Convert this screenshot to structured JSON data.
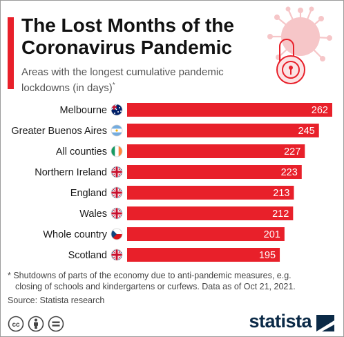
{
  "header": {
    "title": "The Lost Months of the Coronavirus Pandemic",
    "subtitle": "Areas with the longest cumulative pandemic lockdowns (in days)",
    "subtitle_mark": "*"
  },
  "chart_data": {
    "type": "bar",
    "orientation": "horizontal",
    "categories": [
      "Melbourne",
      "Greater Buenos Aires",
      "All counties",
      "Northern Ireland",
      "England",
      "Wales",
      "Whole country",
      "Scotland"
    ],
    "values": [
      262,
      245,
      227,
      223,
      213,
      212,
      201,
      195
    ],
    "flags": [
      "australia-flag",
      "argentina-flag",
      "ireland-flag",
      "uk-flag",
      "uk-flag",
      "uk-flag",
      "czech-flag",
      "uk-flag"
    ],
    "bar_color": "#e8202a",
    "value_label_color": "#ffffff",
    "xlim": [
      0,
      262
    ],
    "grid": false,
    "title": "",
    "xlabel": "",
    "ylabel": ""
  },
  "footer": {
    "footnote_line1": "* Shutdowns of parts of the economy due to anti-pandemic measures, e.g.",
    "footnote_line2": "closing of schools and kindergartens or curfews. Data as of Oct 21, 2021.",
    "source": "Source: Statista research",
    "license_icons": [
      "cc-icon",
      "attribution-icon",
      "no-derivatives-icon"
    ],
    "brand": "statista"
  },
  "colors": {
    "accent": "#e8202a",
    "brand_navy": "#0b2a47",
    "virus_pink": "#f6c6c8"
  }
}
